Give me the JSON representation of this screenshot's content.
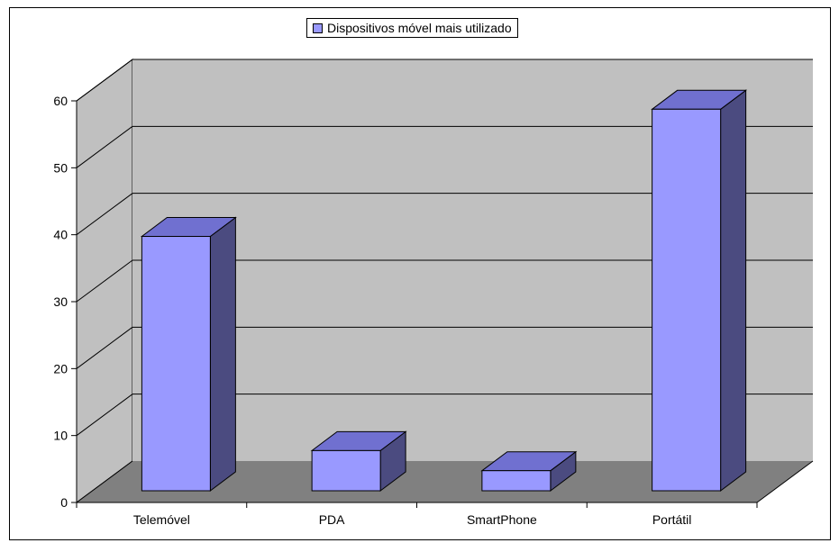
{
  "chart_data": {
    "type": "bar",
    "categories": [
      "Telemóvel",
      "PDA",
      "SmartPhone",
      "Portátil"
    ],
    "series": [
      {
        "name": "Dispositivos móvel mais utilizado",
        "values": [
          38,
          6,
          3,
          57
        ]
      }
    ],
    "ylim": [
      0,
      60
    ],
    "yticks": [
      "0",
      "10",
      "20",
      "30",
      "40",
      "50",
      "60"
    ],
    "grid": true,
    "legend_position": "top-center",
    "colors": {
      "bar_front": "#9999ff",
      "bar_side": "#4b4b80",
      "bar_top": "#7070d0",
      "back_wall": "#c0c0c0",
      "side_wall": "#c0c0c0",
      "floor": "#808080"
    }
  }
}
